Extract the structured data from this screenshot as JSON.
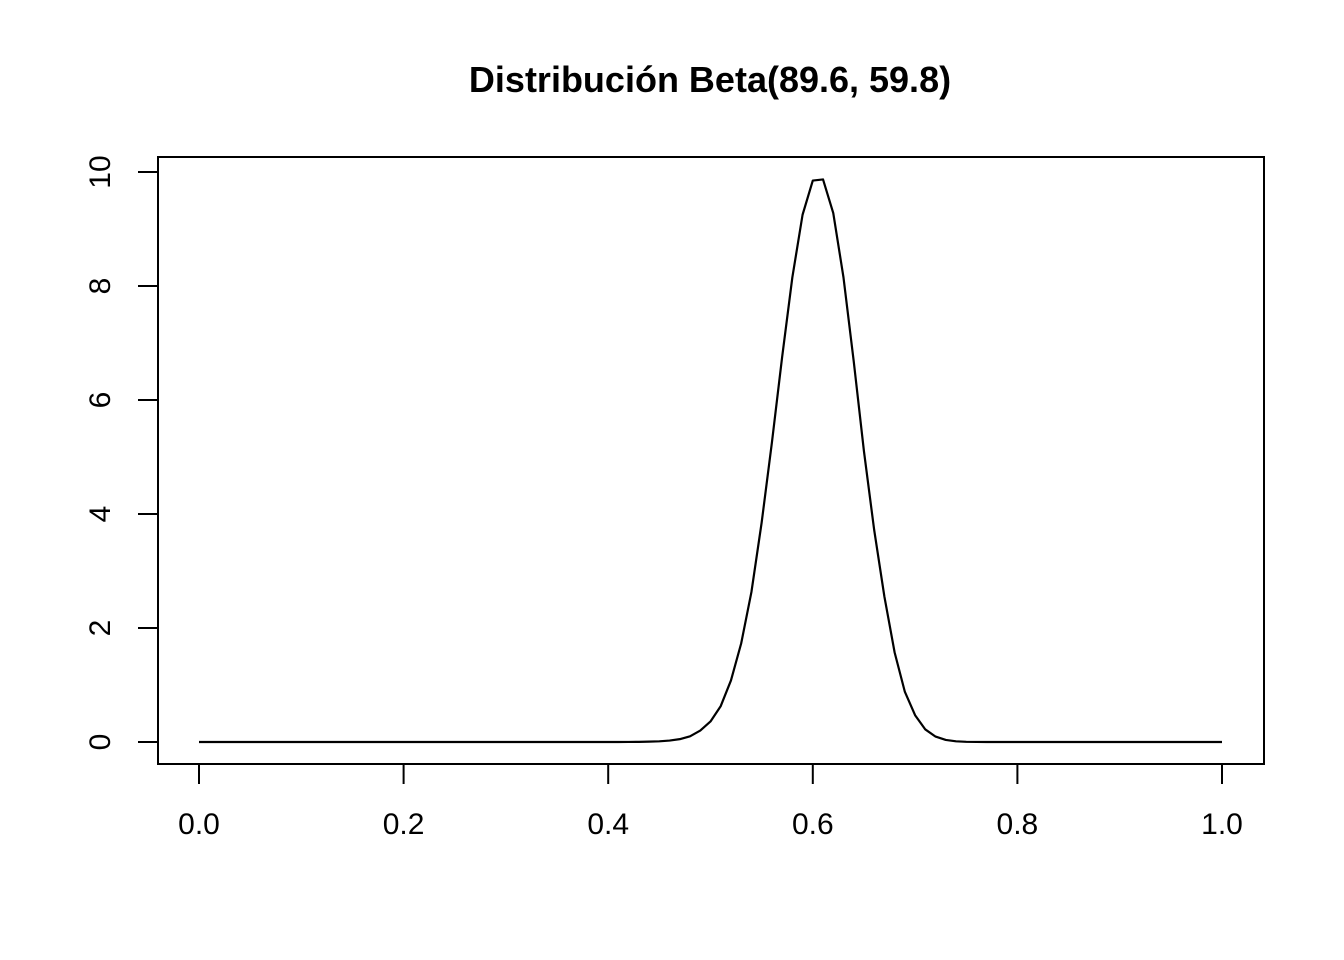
{
  "chart_data": {
    "type": "line",
    "title": "Distribución Beta(89.6, 59.8)",
    "xlabel": "",
    "ylabel": "",
    "xlim": [
      0,
      1
    ],
    "ylim": [
      0,
      10
    ],
    "x_ticks": [
      "0.0",
      "0.2",
      "0.4",
      "0.6",
      "0.8",
      "1.0"
    ],
    "y_ticks": [
      "0",
      "2",
      "4",
      "6",
      "8",
      "10"
    ],
    "grid": false,
    "legend": "none",
    "line_color": "#000000",
    "series": [
      {
        "x": [
          0.0,
          0.01,
          0.02,
          0.03,
          0.04,
          0.05,
          0.06,
          0.07,
          0.08,
          0.09,
          0.1,
          0.11,
          0.12,
          0.13,
          0.14,
          0.15,
          0.16,
          0.17,
          0.18,
          0.19,
          0.2,
          0.21,
          0.22,
          0.23,
          0.24,
          0.25,
          0.26,
          0.27,
          0.28,
          0.29,
          0.3,
          0.31,
          0.32,
          0.33,
          0.34,
          0.35,
          0.36,
          0.37,
          0.38,
          0.39,
          0.4,
          0.41,
          0.42,
          0.43,
          0.44,
          0.45,
          0.46,
          0.47,
          0.48,
          0.49,
          0.5,
          0.51,
          0.52,
          0.53,
          0.54,
          0.55,
          0.56,
          0.57,
          0.58,
          0.59,
          0.6,
          0.61,
          0.62,
          0.63,
          0.64,
          0.65,
          0.66,
          0.67,
          0.68,
          0.69,
          0.7,
          0.71,
          0.72,
          0.73,
          0.74,
          0.75,
          0.76,
          0.77,
          0.78,
          0.79,
          0.8,
          0.81,
          0.82,
          0.83,
          0.84,
          0.85,
          0.86,
          0.87,
          0.88,
          0.89,
          0.9,
          0.91,
          0.92,
          0.93,
          0.94,
          0.95,
          0.96,
          0.97,
          0.98,
          0.99,
          1.0
        ],
        "y": [
          0,
          0,
          0,
          0,
          0,
          0,
          0,
          0,
          0,
          0,
          0,
          0,
          0,
          0,
          0,
          0,
          0,
          0,
          0,
          0,
          0,
          0,
          0,
          0,
          0,
          0,
          0,
          0,
          0,
          0,
          0,
          0,
          0,
          0,
          0,
          0,
          0,
          0,
          0,
          0,
          0.0002,
          0.0005,
          0.0012,
          0.0028,
          0.006,
          0.0125,
          0.025,
          0.05,
          0.1,
          0.2,
          0.36,
          0.63,
          1.08,
          1.73,
          2.63,
          3.85,
          5.25,
          6.75,
          8.15,
          9.25,
          9.85,
          9.87,
          9.28,
          8.15,
          6.68,
          5.1,
          3.72,
          2.55,
          1.57,
          0.88,
          0.47,
          0.22,
          0.095,
          0.036,
          0.012,
          0.0035,
          0.0008,
          0.00015,
          2e-05,
          0,
          0,
          0,
          0,
          0,
          0,
          0,
          0,
          0,
          0,
          0,
          0,
          0,
          0,
          0,
          0,
          0,
          0,
          0,
          0,
          0,
          0
        ]
      }
    ]
  }
}
